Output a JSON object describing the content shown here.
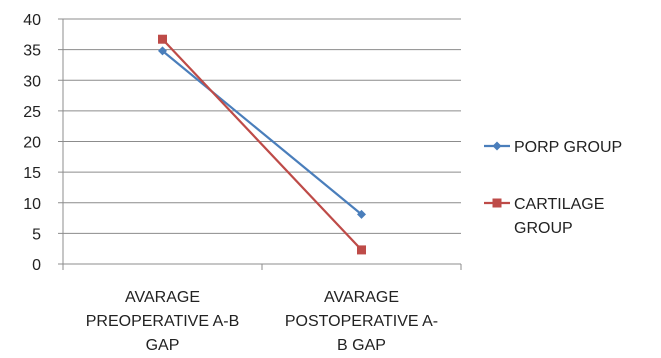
{
  "chart_data": {
    "type": "line",
    "categories": [
      [
        "AVARAGE",
        "PREOPERATIVE A-B",
        "GAP"
      ],
      [
        "AVARAGE",
        "POSTOPERATIVE A-",
        "B GAP"
      ]
    ],
    "series": [
      {
        "name": "PORP GROUP",
        "values": [
          34.8,
          8.1
        ],
        "color": "#4a7ebb",
        "marker": "diamond"
      },
      {
        "name": "CARTILAGE GROUP",
        "name_lines": [
          "CARTILAGE",
          "GROUP"
        ],
        "values": [
          36.7,
          2.3
        ],
        "color": "#be4b48",
        "marker": "square"
      }
    ],
    "ylim": [
      0,
      40
    ],
    "yticks": [
      0,
      5,
      10,
      15,
      20,
      25,
      30,
      35,
      40
    ],
    "grid": true,
    "legend": "right",
    "title": "",
    "xlabel": "",
    "ylabel": ""
  }
}
